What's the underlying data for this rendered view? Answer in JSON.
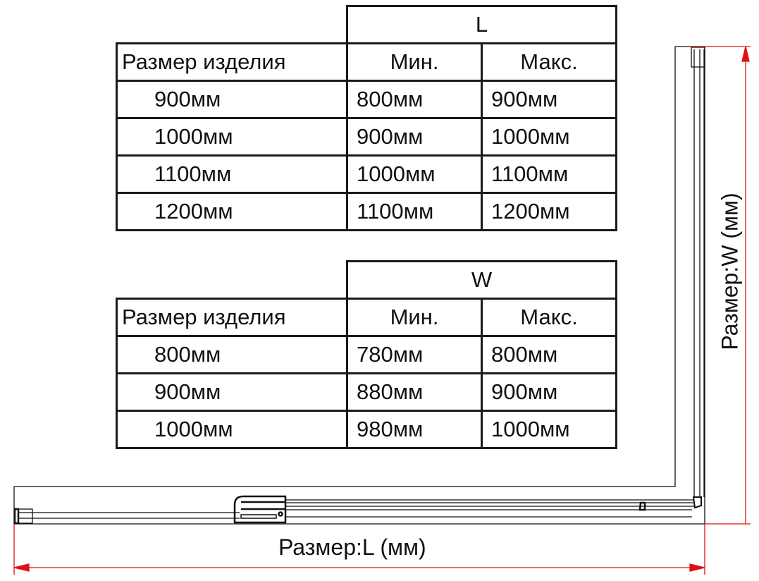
{
  "tables": [
    {
      "dimension": "L",
      "headers": [
        "Размер изделия",
        "Мин.",
        "Макс."
      ],
      "rows": [
        [
          "900мм",
          "800мм",
          "900мм"
        ],
        [
          "1000мм",
          "900мм",
          "1000мм"
        ],
        [
          "1100мм",
          "1000мм",
          "1100мм"
        ],
        [
          "1200мм",
          "1100мм",
          "1200мм"
        ]
      ]
    },
    {
      "dimension": "W",
      "headers": [
        "Размер изделия",
        "Мин.",
        "Макс."
      ],
      "rows": [
        [
          "800мм",
          "780мм",
          "800мм"
        ],
        [
          "900мм",
          "880мм",
          "900мм"
        ],
        [
          "1000мм",
          "980мм",
          "1000мм"
        ]
      ]
    }
  ],
  "drawing": {
    "label_length": "Размер:L (мм)",
    "label_width": "Размер:W (мм)",
    "dimension_color": "#e01010",
    "line_color": "#111111"
  }
}
